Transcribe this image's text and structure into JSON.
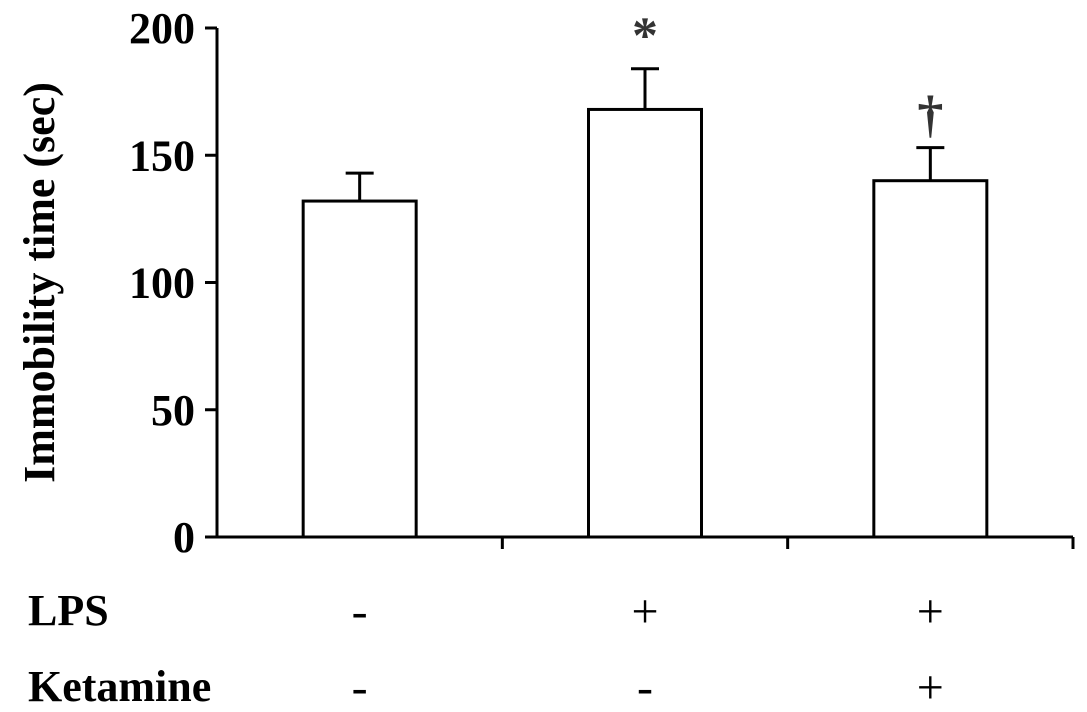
{
  "chart_data": {
    "type": "bar",
    "ylabel": "Immobility time (sec)",
    "ylim": [
      0,
      200
    ],
    "yticks": [
      0,
      50,
      100,
      150,
      200
    ],
    "grid": false,
    "bar_color": "#ffffff",
    "edge_color": "#000000",
    "bars": [
      {
        "value": 132,
        "error": 11,
        "annotation": ""
      },
      {
        "value": 168,
        "error": 16,
        "annotation": "*"
      },
      {
        "value": 140,
        "error": 13,
        "annotation": "†"
      }
    ],
    "conditions": [
      {
        "label": "LPS",
        "values": [
          "-",
          "+",
          "+"
        ]
      },
      {
        "label": "Ketamine",
        "values": [
          "-",
          "-",
          "+"
        ]
      }
    ]
  }
}
